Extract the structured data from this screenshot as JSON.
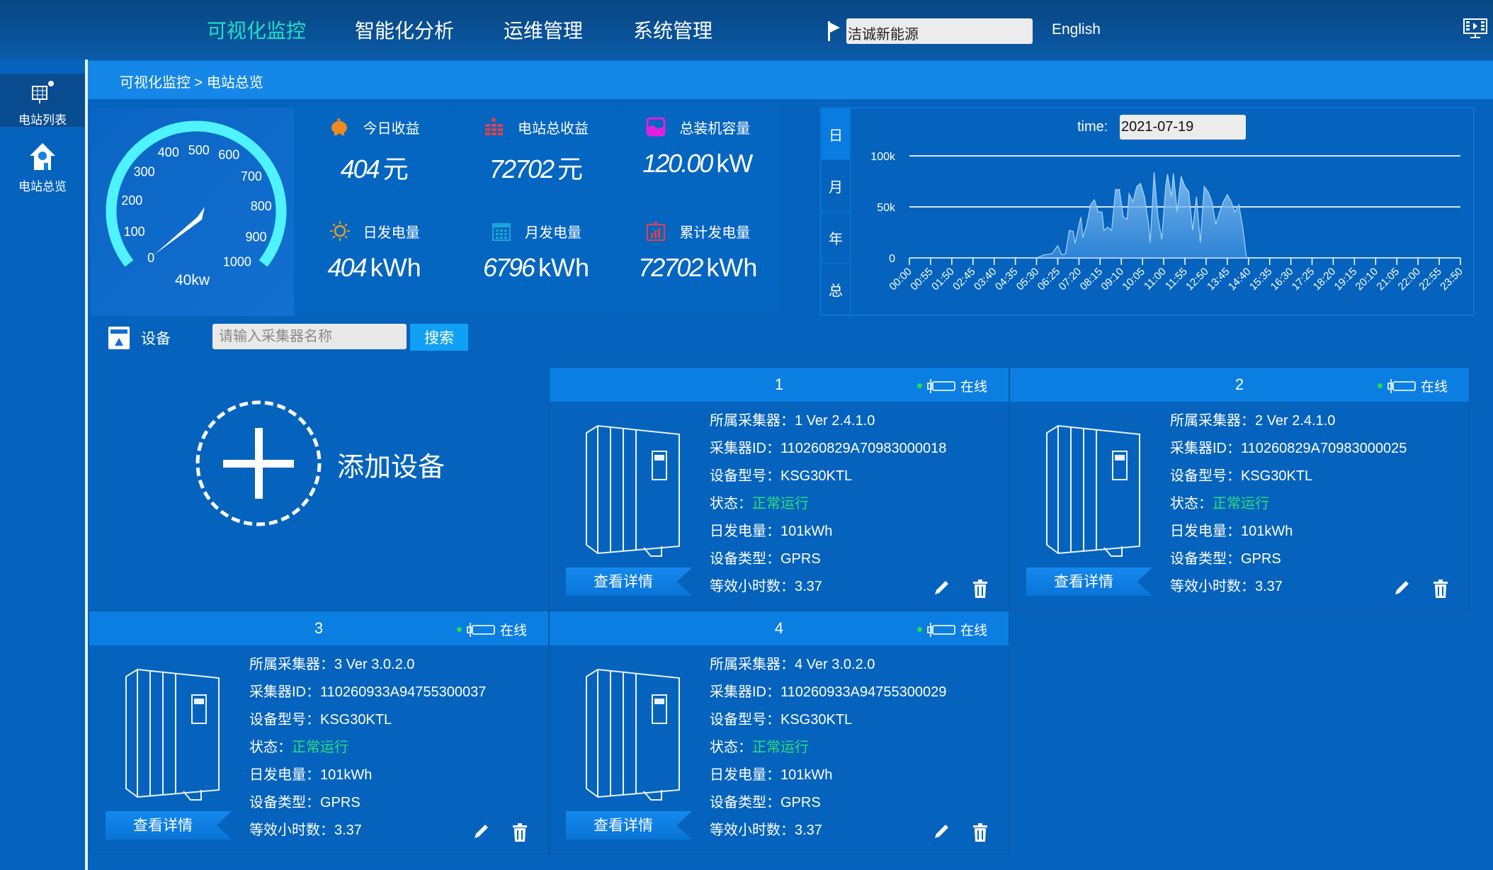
{
  "nav": {
    "items": [
      {
        "label": "可视化监控",
        "active": true
      },
      {
        "label": "智能化分析",
        "active": false
      },
      {
        "label": "运维管理",
        "active": false
      },
      {
        "label": "系统管理",
        "active": false
      }
    ],
    "station_select": "洁诚新能源",
    "language": "English"
  },
  "sidebar": {
    "items": [
      {
        "label": "电站列表",
        "icon": "solar-panel-icon",
        "active": true
      },
      {
        "label": "电站总览",
        "icon": "house-icon",
        "active": false
      }
    ]
  },
  "breadcrumb": "可视化监控 > 电站总览",
  "gauge": {
    "value_label": "40kw",
    "ticks": [
      "0",
      "100",
      "200",
      "300",
      "400",
      "500",
      "600",
      "700",
      "800",
      "900",
      "1000"
    ],
    "color": "#4ff3ff"
  },
  "stats": [
    {
      "label": "今日收益",
      "value": "404",
      "unit": "元",
      "icon": "piggy-bank-icon",
      "color": "#f08a1c"
    },
    {
      "label": "电站总收益",
      "value": "72702",
      "unit": "元",
      "icon": "coins-icon",
      "color": "#e2404a"
    },
    {
      "label": "总装机容量",
      "value": "120.00",
      "unit": "kW",
      "icon": "capacity-icon",
      "color": "#e020e0"
    },
    {
      "label": "日发电量",
      "value": "404",
      "unit": "kWh",
      "icon": "sun-icon",
      "color": "#e0a020"
    },
    {
      "label": "月发电量",
      "value": "6796",
      "unit": "kWh",
      "icon": "calendar-icon",
      "color": "#18a8d8"
    },
    {
      "label": "累计发电量",
      "value": "72702",
      "unit": "kWh",
      "icon": "bar-chart-icon",
      "color": "#e2404a"
    }
  ],
  "chart_tabs": [
    "日",
    "月",
    "年",
    "总"
  ],
  "time_label": "time:",
  "time_value": "2021-07-19",
  "chart_data": {
    "type": "area",
    "title": "",
    "xlabel": "",
    "ylabel": "",
    "ylim": [
      0,
      100000
    ],
    "y_ticks": [
      {
        "value": 0,
        "label": "0"
      },
      {
        "value": 50000,
        "label": "50k"
      },
      {
        "value": 100000,
        "label": "100k"
      }
    ],
    "x_ticks": [
      "00:00",
      "00:55",
      "01:50",
      "02:45",
      "03:40",
      "04:35",
      "05:30",
      "06:25",
      "07:20",
      "08:15",
      "09:10",
      "10:05",
      "11:00",
      "11:55",
      "12:50",
      "13:45",
      "14:40",
      "15:35",
      "16:30",
      "17:25",
      "18:20",
      "19:15",
      "20:10",
      "21:05",
      "22:00",
      "22:55",
      "23:50"
    ],
    "grid": true,
    "series": [
      {
        "points": [
          [
            "00:00",
            0
          ],
          [
            "05:30",
            0
          ],
          [
            "05:50",
            3000
          ],
          [
            "06:10",
            4000
          ],
          [
            "06:25",
            12000
          ],
          [
            "06:35",
            3000
          ],
          [
            "06:45",
            4000
          ],
          [
            "06:55",
            27000
          ],
          [
            "07:05",
            26000
          ],
          [
            "07:10",
            14000
          ],
          [
            "07:20",
            32000
          ],
          [
            "07:25",
            40000
          ],
          [
            "07:30",
            20000
          ],
          [
            "07:40",
            32000
          ],
          [
            "07:50",
            52000
          ],
          [
            "08:00",
            57000
          ],
          [
            "08:10",
            45000
          ],
          [
            "08:20",
            45000
          ],
          [
            "08:25",
            27000
          ],
          [
            "08:35",
            30000
          ],
          [
            "08:45",
            27000
          ],
          [
            "08:55",
            67000
          ],
          [
            "09:05",
            67000
          ],
          [
            "09:15",
            40000
          ],
          [
            "09:25",
            38000
          ],
          [
            "09:30",
            63000
          ],
          [
            "09:40",
            55000
          ],
          [
            "09:50",
            70000
          ],
          [
            "10:00",
            73000
          ],
          [
            "10:10",
            60000
          ],
          [
            "10:20",
            35000
          ],
          [
            "10:25",
            15000
          ],
          [
            "10:35",
            84000
          ],
          [
            "10:45",
            40000
          ],
          [
            "10:55",
            18000
          ],
          [
            "11:05",
            70000
          ],
          [
            "11:10",
            82000
          ],
          [
            "11:20",
            60000
          ],
          [
            "11:25",
            83000
          ],
          [
            "11:35",
            45000
          ],
          [
            "11:45",
            80000
          ],
          [
            "11:55",
            70000
          ],
          [
            "12:05",
            65000
          ],
          [
            "12:15",
            27000
          ],
          [
            "12:25",
            60000
          ],
          [
            "12:35",
            15000
          ],
          [
            "12:45",
            70000
          ],
          [
            "12:55",
            65000
          ],
          [
            "13:05",
            55000
          ],
          [
            "13:15",
            33000
          ],
          [
            "13:25",
            45000
          ],
          [
            "13:35",
            55000
          ],
          [
            "13:45",
            62000
          ],
          [
            "13:55",
            55000
          ],
          [
            "14:05",
            45000
          ],
          [
            "14:15",
            52000
          ],
          [
            "14:25",
            30000
          ],
          [
            "14:35",
            0
          ],
          [
            "23:50",
            0
          ]
        ]
      }
    ]
  },
  "toolbar": {
    "label": "设备",
    "search_placeholder": "请输入采集器名称",
    "search_button": "搜索"
  },
  "add_device_label": "添加设备",
  "device_fields": {
    "collector": "所属采集器：",
    "collector_id": "采集器ID：",
    "model": "设备型号：",
    "status": "状态：",
    "daily_energy": "日发电量：",
    "type": "设备类型：",
    "equiv_hours": "等效小时数："
  },
  "detail_button": "查看详情",
  "devices": [
    {
      "title": "1",
      "online": "在线",
      "collector": "1  Ver 2.4.1.0",
      "collector_id": "110260829A70983000018",
      "model": "KSG30KTL",
      "status": "正常运行",
      "daily_energy": "101kWh",
      "type": "GPRS",
      "equiv_hours": "3.37"
    },
    {
      "title": "2",
      "online": "在线",
      "collector": "2  Ver 2.4.1.0",
      "collector_id": "110260829A70983000025",
      "model": "KSG30KTL",
      "status": "正常运行",
      "daily_energy": "101kWh",
      "type": "GPRS",
      "equiv_hours": "3.37"
    },
    {
      "title": "3",
      "online": "在线",
      "collector": "3  Ver 3.0.2.0",
      "collector_id": "110260933A94755300037",
      "model": "KSG30KTL",
      "status": "正常运行",
      "daily_energy": "101kWh",
      "type": "GPRS",
      "equiv_hours": "3.37"
    },
    {
      "title": "4",
      "online": "在线",
      "collector": "4  Ver 3.0.2.0",
      "collector_id": "110260933A94755300029",
      "model": "KSG30KTL",
      "status": "正常运行",
      "daily_energy": "101kWh",
      "type": "GPRS",
      "equiv_hours": "3.37"
    }
  ]
}
